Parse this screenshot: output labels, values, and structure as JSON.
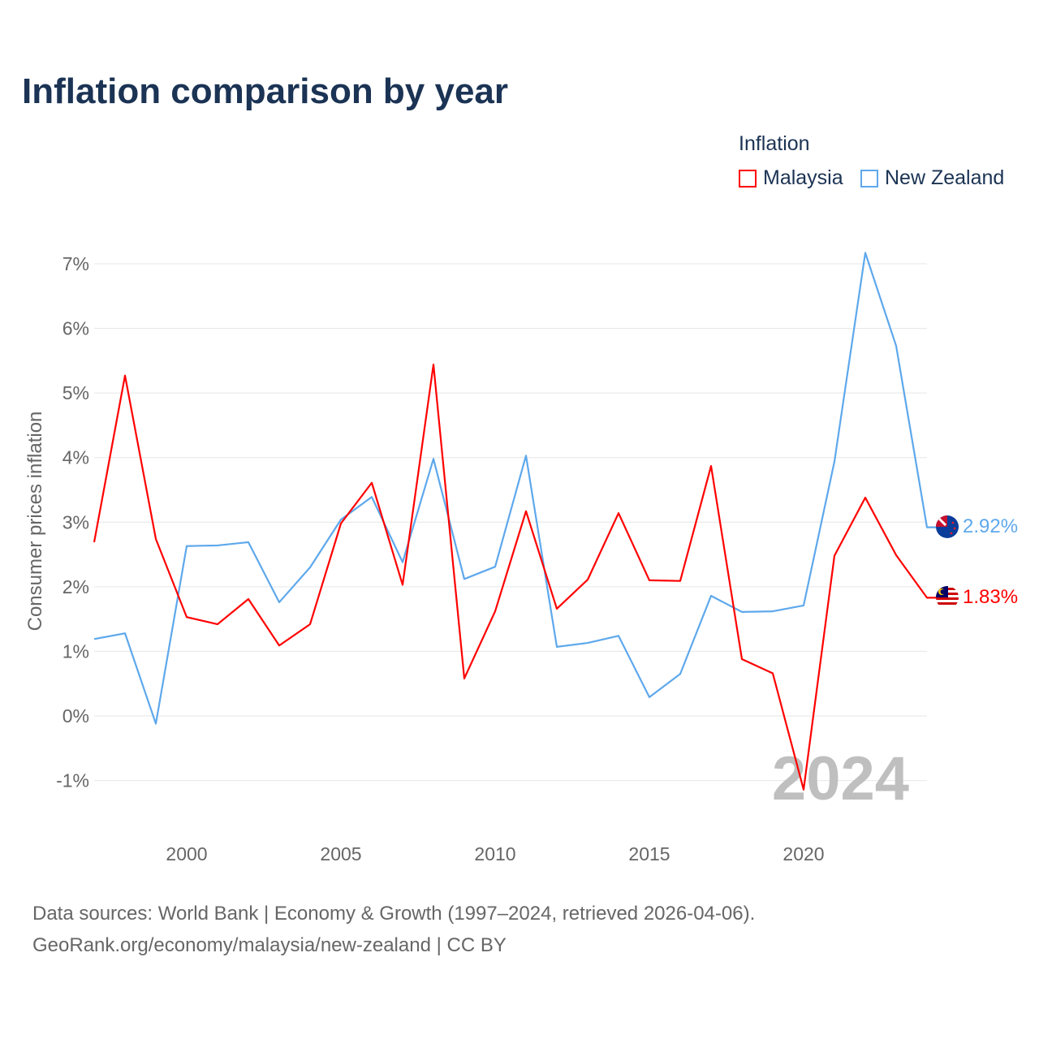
{
  "chart_data": {
    "type": "line",
    "title": "Inflation comparison by year",
    "ylabel": "Consumer prices inflation",
    "xlabel": "",
    "legend_title": "Inflation",
    "legend_position": "top-right",
    "xlim": [
      1997,
      2024
    ],
    "ylim": [
      -1.5,
      7.5
    ],
    "x_ticks": [
      2000,
      2005,
      2010,
      2015,
      2020
    ],
    "x_tick_labels": [
      "2000",
      "2005",
      "2010",
      "2015",
      "2020"
    ],
    "y_ticks": [
      -1,
      0,
      1,
      2,
      3,
      4,
      5,
      6,
      7
    ],
    "y_tick_labels": [
      "-1%",
      "0%",
      "1%",
      "2%",
      "3%",
      "4%",
      "5%",
      "6%",
      "7%"
    ],
    "grid": true,
    "year_watermark": "2024",
    "x": [
      1997,
      1998,
      1999,
      2000,
      2001,
      2002,
      2003,
      2004,
      2005,
      2006,
      2007,
      2008,
      2009,
      2010,
      2011,
      2012,
      2013,
      2014,
      2015,
      2016,
      2017,
      2018,
      2019,
      2020,
      2021,
      2022,
      2023,
      2024
    ],
    "series": [
      {
        "name": "Malaysia",
        "color": "#ff0000",
        "end_label": "1.83%",
        "values": [
          2.69,
          5.27,
          2.74,
          1.53,
          1.42,
          1.81,
          1.09,
          1.42,
          2.98,
          3.61,
          2.03,
          5.44,
          0.58,
          1.62,
          3.17,
          1.66,
          2.11,
          3.14,
          2.1,
          2.09,
          3.87,
          0.88,
          0.66,
          -1.14,
          2.48,
          3.38,
          2.49,
          1.83
        ]
      },
      {
        "name": "New Zealand",
        "color": "#5ea8ec",
        "end_label": "2.92%",
        "values": [
          1.19,
          1.28,
          -0.12,
          2.63,
          2.64,
          2.69,
          1.76,
          2.3,
          3.04,
          3.39,
          2.38,
          3.98,
          2.12,
          2.31,
          4.03,
          1.07,
          1.13,
          1.24,
          0.29,
          0.65,
          1.86,
          1.61,
          1.62,
          1.71,
          3.94,
          7.17,
          5.73,
          2.92
        ]
      }
    ]
  },
  "source": {
    "line1": "Data sources: World Bank | Economy & Growth (1997–2024, retrieved 2026-04-06).",
    "line2": "GeoRank.org/economy/malaysia/new-zealand | CC BY"
  }
}
